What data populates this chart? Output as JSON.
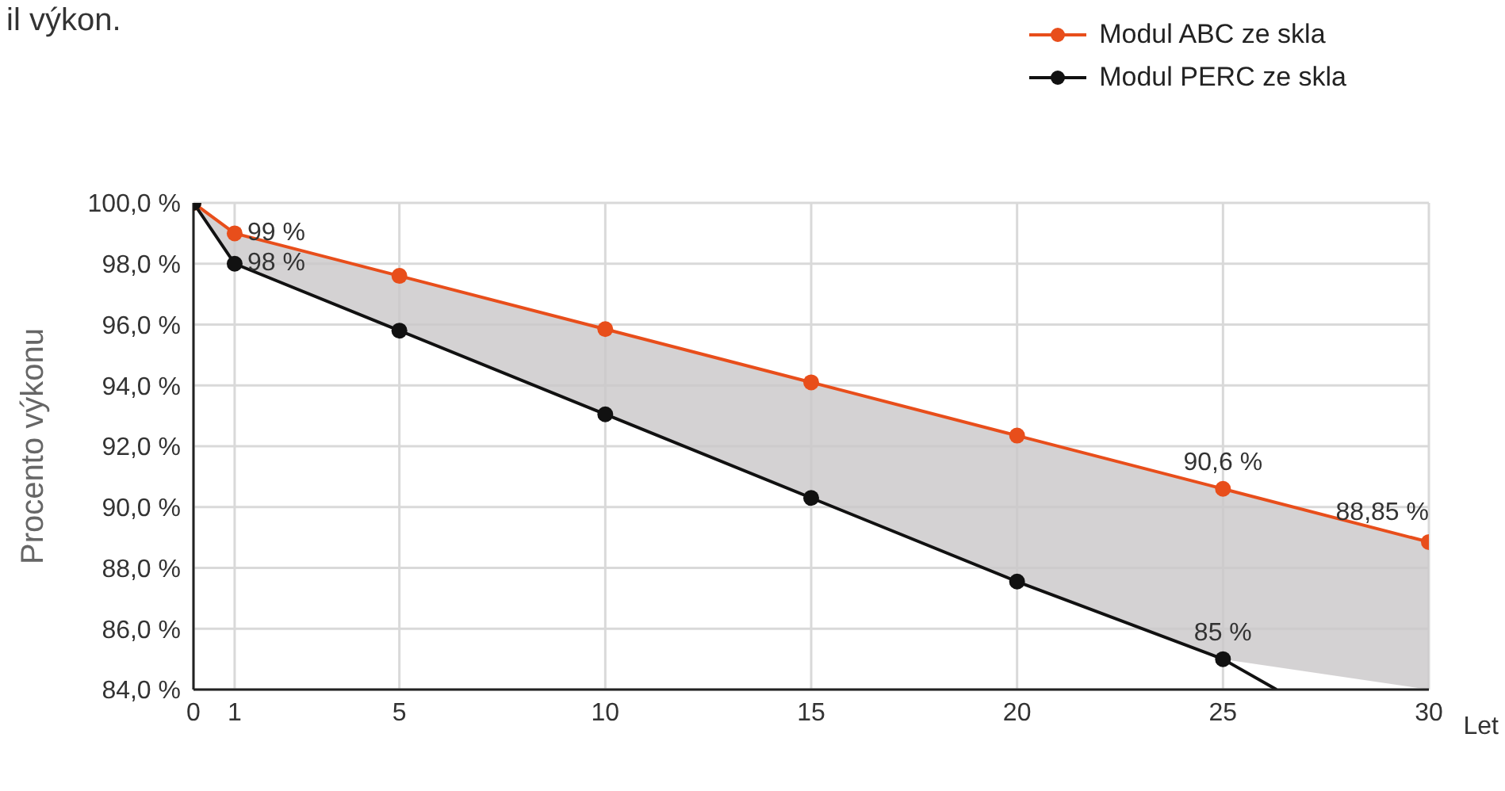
{
  "chart_data": {
    "type": "line",
    "title": "il výkon.",
    "xlabel": "Let",
    "ylabel": "Procento výkonu",
    "xlim": [
      0,
      30
    ],
    "xticks": [
      0,
      1,
      5,
      10,
      15,
      20,
      25,
      30
    ],
    "ylim": [
      84,
      100
    ],
    "yticks": [
      {
        "value": 84,
        "label": "84,0 %"
      },
      {
        "value": 86,
        "label": "86,0 %"
      },
      {
        "value": 88,
        "label": "88,0 %"
      },
      {
        "value": 90,
        "label": "90,0 %"
      },
      {
        "value": 92,
        "label": "92,0 %"
      },
      {
        "value": 94,
        "label": "94,0 %"
      },
      {
        "value": 96,
        "label": "96,0 %"
      },
      {
        "value": 98,
        "label": "98,0 %"
      },
      {
        "value": 100,
        "label": "100,0 %"
      }
    ],
    "series": [
      {
        "name": "Modul ABC ze skla",
        "color": "#e84e1b",
        "x": [
          0,
          1,
          5,
          10,
          15,
          20,
          25,
          30
        ],
        "values": [
          100,
          99,
          97.6,
          95.85,
          94.1,
          92.35,
          90.6,
          88.85
        ],
        "lower": [
          100,
          98,
          95.8,
          93.05,
          90.3,
          87.55,
          85,
          84
        ],
        "upper": [
          100,
          99,
          97.6,
          95.85,
          94.1,
          92.35,
          90.6,
          88.85
        ],
        "value_labels": [
          null,
          "99 %",
          null,
          null,
          null,
          null,
          "90,6 %",
          "88,85 %"
        ]
      },
      {
        "name": "Modul PERC ze skla",
        "color": "#111111",
        "x": [
          0,
          1,
          5,
          10,
          15,
          20,
          25,
          26.3
        ],
        "values": [
          100,
          98,
          95.8,
          93.05,
          90.3,
          87.55,
          85,
          84
        ],
        "value_labels": [
          null,
          "98 %",
          null,
          null,
          null,
          null,
          "85 %",
          null
        ]
      }
    ],
    "grid": true,
    "legend": "top right",
    "marker": "circle",
    "line_style": "solid"
  }
}
